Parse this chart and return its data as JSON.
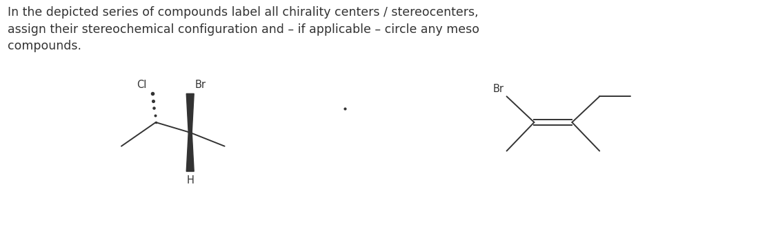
{
  "title_lines": [
    "In the depicted series of compounds label all chirality centers / stereocenters,",
    "assign their stereochemical configuration and – if applicable – circle any meso",
    "compounds."
  ],
  "title_fontsize": 12.5,
  "background_color": "#ffffff",
  "line_color": "#333333",
  "text_color": "#333333",
  "label_fontsize": 10.5
}
